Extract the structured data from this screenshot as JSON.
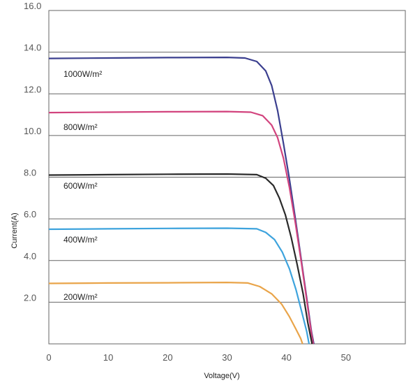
{
  "chart_data": {
    "type": "line",
    "title": "",
    "xlabel": "Voltage(V)",
    "ylabel": "Current(A)",
    "xlim": [
      0,
      60
    ],
    "ylim": [
      0,
      16
    ],
    "xticks": [
      "0",
      "10",
      "20",
      "30",
      "40",
      "50"
    ],
    "yticks": [
      "2.0",
      "4.0",
      "6.0",
      "8.0",
      "10.0",
      "12.0",
      "14.0",
      "16.0"
    ],
    "grid": "horizontal",
    "legend": "inline labels",
    "series": [
      {
        "name": "1000W/m²",
        "color": "#3b3f8f",
        "points": [
          [
            0,
            13.7
          ],
          [
            10,
            13.72
          ],
          [
            20,
            13.74
          ],
          [
            30,
            13.75
          ],
          [
            33,
            13.72
          ],
          [
            35,
            13.55
          ],
          [
            36.5,
            13.1
          ],
          [
            37.5,
            12.4
          ],
          [
            38.5,
            11.2
          ],
          [
            39.5,
            9.6
          ],
          [
            40.5,
            7.9
          ],
          [
            41.5,
            6.0
          ],
          [
            42.5,
            4.0
          ],
          [
            43.5,
            2.0
          ],
          [
            44.2,
            0.6
          ],
          [
            44.6,
            0
          ]
        ]
      },
      {
        "name": "800W/m²",
        "color": "#d2447e",
        "points": [
          [
            0,
            11.1
          ],
          [
            10,
            11.12
          ],
          [
            20,
            11.14
          ],
          [
            30,
            11.15
          ],
          [
            34,
            11.12
          ],
          [
            36,
            10.95
          ],
          [
            37.5,
            10.5
          ],
          [
            38.5,
            9.9
          ],
          [
            39.5,
            8.9
          ],
          [
            40.5,
            7.5
          ],
          [
            41.5,
            5.8
          ],
          [
            42.5,
            3.9
          ],
          [
            43.5,
            1.9
          ],
          [
            44.2,
            0.5
          ],
          [
            44.5,
            0
          ]
        ]
      },
      {
        "name": "600W/m²",
        "color": "#2a2a2a",
        "points": [
          [
            0,
            8.1
          ],
          [
            10,
            8.12
          ],
          [
            20,
            8.14
          ],
          [
            30,
            8.15
          ],
          [
            35,
            8.12
          ],
          [
            36.5,
            7.95
          ],
          [
            37.8,
            7.6
          ],
          [
            38.8,
            7.0
          ],
          [
            39.8,
            6.2
          ],
          [
            40.8,
            5.1
          ],
          [
            41.8,
            3.8
          ],
          [
            42.8,
            2.4
          ],
          [
            43.6,
            1.0
          ],
          [
            44.3,
            0
          ]
        ]
      },
      {
        "name": "400W/m²",
        "color": "#3da3dd",
        "points": [
          [
            0,
            5.5
          ],
          [
            10,
            5.52
          ],
          [
            20,
            5.54
          ],
          [
            30,
            5.55
          ],
          [
            35,
            5.52
          ],
          [
            36.5,
            5.35
          ],
          [
            38,
            5.0
          ],
          [
            39.3,
            4.4
          ],
          [
            40.5,
            3.6
          ],
          [
            41.6,
            2.6
          ],
          [
            42.6,
            1.5
          ],
          [
            43.4,
            0.6
          ],
          [
            43.8,
            0
          ]
        ]
      },
      {
        "name": "200W/m²",
        "color": "#e9a449",
        "points": [
          [
            0,
            2.9
          ],
          [
            10,
            2.92
          ],
          [
            20,
            2.93
          ],
          [
            30,
            2.95
          ],
          [
            33.5,
            2.92
          ],
          [
            35.5,
            2.75
          ],
          [
            37.5,
            2.4
          ],
          [
            39.2,
            1.9
          ],
          [
            40.5,
            1.3
          ],
          [
            41.6,
            0.7
          ],
          [
            42.4,
            0.25
          ],
          [
            42.7,
            0
          ]
        ]
      }
    ],
    "series_labels": {
      "1000": "1000W/m²",
      "800": "800W/m²",
      "600": "600W/m²",
      "400": "400W/m²",
      "200": "200W/m²"
    },
    "label_anchor_y": [
      12.97,
      9.32,
      6.98,
      4.56,
      1.62
    ]
  }
}
